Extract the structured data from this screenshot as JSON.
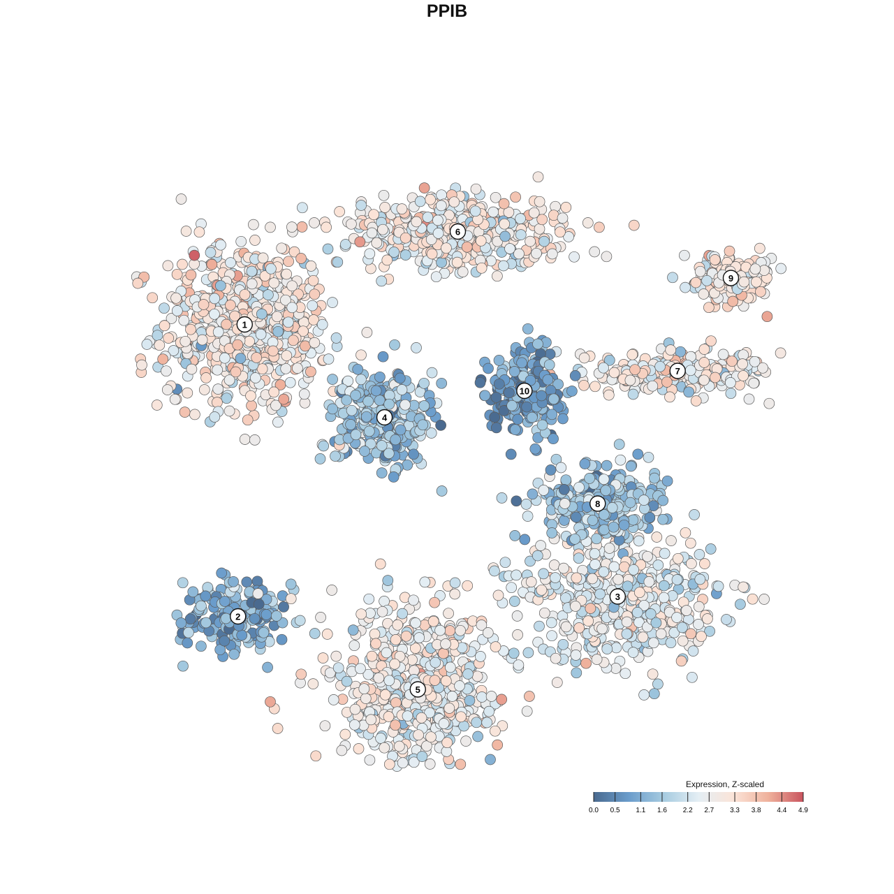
{
  "chart_data": {
    "type": "scatter",
    "title": "PPIB",
    "xlabel": "",
    "ylabel": "",
    "color_scale": {
      "title": "Expression, Z-scaled",
      "min": 0.0,
      "max": 4.9,
      "ticks": [
        0.0,
        0.5,
        1.1,
        1.6,
        2.2,
        2.7,
        3.3,
        3.8,
        4.4,
        4.9
      ],
      "tick_labels": [
        "0.0",
        "0.5",
        "1.1",
        "1.6",
        "2.2",
        "2.7",
        "3.3",
        "3.8",
        "4.4",
        "4.9"
      ],
      "colors": [
        "#4a6a8f",
        "#6a9ccb",
        "#a6cbe0",
        "#e4eef4",
        "#fbe4d8",
        "#efb19c",
        "#c9545e"
      ],
      "legend_placement": "bottom-right"
    },
    "clusters": [
      {
        "label": "1",
        "x": 0.06,
        "y": 0.64,
        "sx": 0.07,
        "sy": 0.07,
        "weight": 0.17,
        "mean_expr": 2.9
      },
      {
        "label": "2",
        "x": 0.05,
        "y": 0.2,
        "sx": 0.045,
        "sy": 0.035,
        "weight": 0.05,
        "mean_expr": 1.3
      },
      {
        "label": "3",
        "x": 0.62,
        "y": 0.23,
        "sx": 0.085,
        "sy": 0.055,
        "weight": 0.12,
        "mean_expr": 2.5
      },
      {
        "label": "4",
        "x": 0.27,
        "y": 0.5,
        "sx": 0.04,
        "sy": 0.04,
        "weight": 0.09,
        "mean_expr": 1.5
      },
      {
        "label": "5",
        "x": 0.32,
        "y": 0.09,
        "sx": 0.07,
        "sy": 0.07,
        "weight": 0.15,
        "mean_expr": 2.7
      },
      {
        "label": "6",
        "x": 0.38,
        "y": 0.78,
        "sx": 0.09,
        "sy": 0.03,
        "weight": 0.12,
        "mean_expr": 2.8
      },
      {
        "label": "7",
        "x": 0.71,
        "y": 0.57,
        "sx": 0.08,
        "sy": 0.02,
        "weight": 0.06,
        "mean_expr": 2.9
      },
      {
        "label": "8",
        "x": 0.59,
        "y": 0.37,
        "sx": 0.05,
        "sy": 0.03,
        "weight": 0.07,
        "mean_expr": 1.6
      },
      {
        "label": "9",
        "x": 0.79,
        "y": 0.71,
        "sx": 0.04,
        "sy": 0.02,
        "weight": 0.04,
        "mean_expr": 3.0
      },
      {
        "label": "10",
        "x": 0.48,
        "y": 0.54,
        "sx": 0.03,
        "sy": 0.035,
        "weight": 0.05,
        "mean_expr": 0.9
      }
    ],
    "xlim": [
      -0.15,
      0.93
    ],
    "ylim": [
      -0.05,
      0.95
    ],
    "grid": false,
    "points_rendered": 3600
  }
}
